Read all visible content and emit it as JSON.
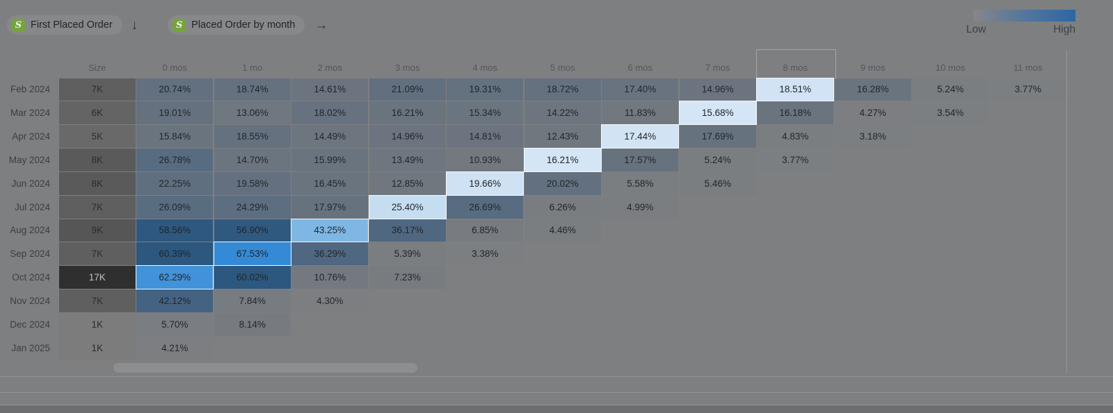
{
  "toolbar": {
    "event_pills": [
      {
        "label": "First Placed Order"
      },
      {
        "label": "Placed Order by month"
      }
    ],
    "arrow_down": "↓",
    "arrow_right": "→",
    "shopify_icon_letter": "S"
  },
  "legend": {
    "low_label": "Low",
    "high_label": "High"
  },
  "chart_data": {
    "type": "heatmap",
    "size_column_header": "Size",
    "month_columns": [
      "0 mos",
      "1 mo",
      "2 mos",
      "3 mos",
      "4 mos",
      "5 mos",
      "6 mos",
      "7 mos",
      "8 mos",
      "9 mos",
      "10 mos",
      "11 mos"
    ],
    "highlighted_column": "8 mos",
    "unit": "%",
    "value_range": [
      0,
      70
    ],
    "legend_position": "top-right",
    "cohorts": [
      {
        "label": "Feb 2024",
        "size": "7K",
        "highlighted_month_index": 8,
        "values": [
          20.74,
          18.74,
          14.61,
          21.09,
          19.31,
          18.72,
          17.4,
          14.96,
          18.51,
          16.28,
          5.24,
          3.77
        ]
      },
      {
        "label": "Mar 2024",
        "size": "6K",
        "highlighted_month_index": 7,
        "values": [
          19.01,
          13.06,
          18.02,
          16.21,
          15.34,
          14.22,
          11.83,
          15.68,
          16.18,
          4.27,
          3.54
        ]
      },
      {
        "label": "Apr 2024",
        "size": "5K",
        "highlighted_month_index": 6,
        "values": [
          15.84,
          18.55,
          14.49,
          14.96,
          14.81,
          12.43,
          17.44,
          17.69,
          4.83,
          3.18
        ]
      },
      {
        "label": "May 2024",
        "size": "8K",
        "highlighted_month_index": 5,
        "values": [
          26.78,
          14.7,
          15.99,
          13.49,
          10.93,
          16.21,
          17.57,
          5.24,
          3.77
        ]
      },
      {
        "label": "Jun 2024",
        "size": "8K",
        "highlighted_month_index": 4,
        "values": [
          22.25,
          19.58,
          16.45,
          12.85,
          19.66,
          20.02,
          5.58,
          5.46
        ]
      },
      {
        "label": "Jul 2024",
        "size": "7K",
        "highlighted_month_index": 3,
        "values": [
          26.09,
          24.29,
          17.97,
          25.4,
          26.69,
          6.26,
          4.99
        ]
      },
      {
        "label": "Aug 2024",
        "size": "9K",
        "highlighted_month_index": 2,
        "values": [
          58.56,
          56.9,
          43.25,
          36.17,
          6.85,
          4.46
        ]
      },
      {
        "label": "Sep 2024",
        "size": "7K",
        "highlighted_month_index": 1,
        "values": [
          60.39,
          67.53,
          36.29,
          5.39,
          3.38
        ]
      },
      {
        "label": "Oct 2024",
        "size": "17K",
        "highlighted_month_index": 0,
        "values": [
          62.29,
          60.02,
          10.76,
          7.23
        ]
      },
      {
        "label": "Nov 2024",
        "size": "7K",
        "highlighted_month_index": null,
        "values": [
          42.12,
          7.84,
          4.3
        ]
      },
      {
        "label": "Dec 2024",
        "size": "1K",
        "highlighted_month_index": null,
        "values": [
          5.7,
          8.14
        ]
      },
      {
        "label": "Jan 2025",
        "size": "1K",
        "highlighted_month_index": null,
        "values": [
          4.21
        ]
      }
    ]
  },
  "colors": {
    "page_background": "#7e7f81",
    "accent_high": "#3389d5",
    "shopify_green": "#76a33c",
    "legend_gradient": [
      "rgba(175,180,186,0.15)",
      "#55759c",
      "#2c67a5"
    ],
    "normal_stops": [
      [
        0,
        "#7f8184"
      ],
      [
        5,
        "#7b7e81"
      ],
      [
        12,
        "#71787f"
      ],
      [
        20,
        "#63707f"
      ],
      [
        27,
        "#586c81"
      ],
      [
        37,
        "#4e6781"
      ],
      [
        45,
        "#3f6083"
      ],
      [
        62,
        "#2a567e"
      ]
    ],
    "highlight_stops": [
      [
        15,
        "#d5e6f5"
      ],
      [
        20,
        "#cfe2f3"
      ],
      [
        26,
        "#c4dcf1"
      ],
      [
        43,
        "#80b7e4"
      ],
      [
        62,
        "#4392d9"
      ],
      [
        68,
        "#3389d5"
      ]
    ],
    "size_shade_range": [
      "#7c7c7c",
      "#2f2f2f"
    ]
  }
}
